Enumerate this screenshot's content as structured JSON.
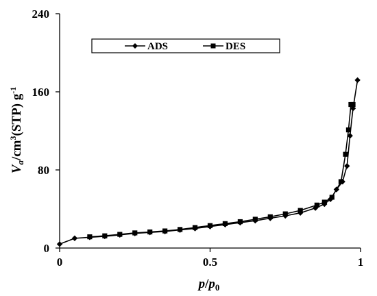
{
  "chart_data": {
    "type": "line",
    "title": "",
    "x": {
      "ticks": [
        "0",
        "0.5",
        "1"
      ],
      "tick_values": [
        0,
        0.5,
        1
      ],
      "lim": [
        0,
        1
      ],
      "label": {
        "italic": "p",
        "mid": "/",
        "italic2": "p",
        "sub": "0"
      }
    },
    "y": {
      "ticks": [
        "0",
        "80",
        "160",
        "240"
      ],
      "tick_values": [
        0,
        80,
        160,
        240
      ],
      "lim": [
        0,
        240
      ],
      "label": {
        "italic": "V",
        "sub": "a",
        "mid": "/cm",
        "sup": "3",
        "tail": "(STP) g",
        "sup2": "-1"
      }
    },
    "grid": false,
    "legend": {
      "placement": "top-center",
      "boxed": true
    },
    "series": [
      {
        "name": "ADS",
        "marker": "diamond",
        "color": "#000000",
        "x": [
          0.0,
          0.05,
          0.1,
          0.15,
          0.2,
          0.25,
          0.3,
          0.35,
          0.4,
          0.45,
          0.5,
          0.55,
          0.6,
          0.65,
          0.7,
          0.75,
          0.8,
          0.85,
          0.88,
          0.9,
          0.92,
          0.94,
          0.955,
          0.965,
          0.975,
          0.99
        ],
        "y": [
          4,
          10,
          11,
          12,
          13.5,
          15,
          16,
          17,
          18.5,
          20,
          22,
          24,
          26,
          28,
          30.5,
          33,
          36,
          41,
          45,
          50,
          60,
          68,
          84,
          115,
          143,
          172
        ]
      },
      {
        "name": "DES",
        "marker": "square",
        "color": "#000000",
        "x": [
          0.1,
          0.15,
          0.2,
          0.25,
          0.3,
          0.35,
          0.4,
          0.45,
          0.5,
          0.55,
          0.6,
          0.65,
          0.7,
          0.75,
          0.8,
          0.855,
          0.88,
          0.905,
          0.935,
          0.95,
          0.96,
          0.968,
          0.975
        ],
        "y": [
          11.5,
          12.5,
          14,
          15.5,
          16.5,
          17.5,
          19,
          21,
          23,
          25,
          27,
          29.5,
          32,
          35,
          38.5,
          44,
          47,
          52,
          68,
          96,
          121,
          147,
          147
        ]
      }
    ]
  }
}
